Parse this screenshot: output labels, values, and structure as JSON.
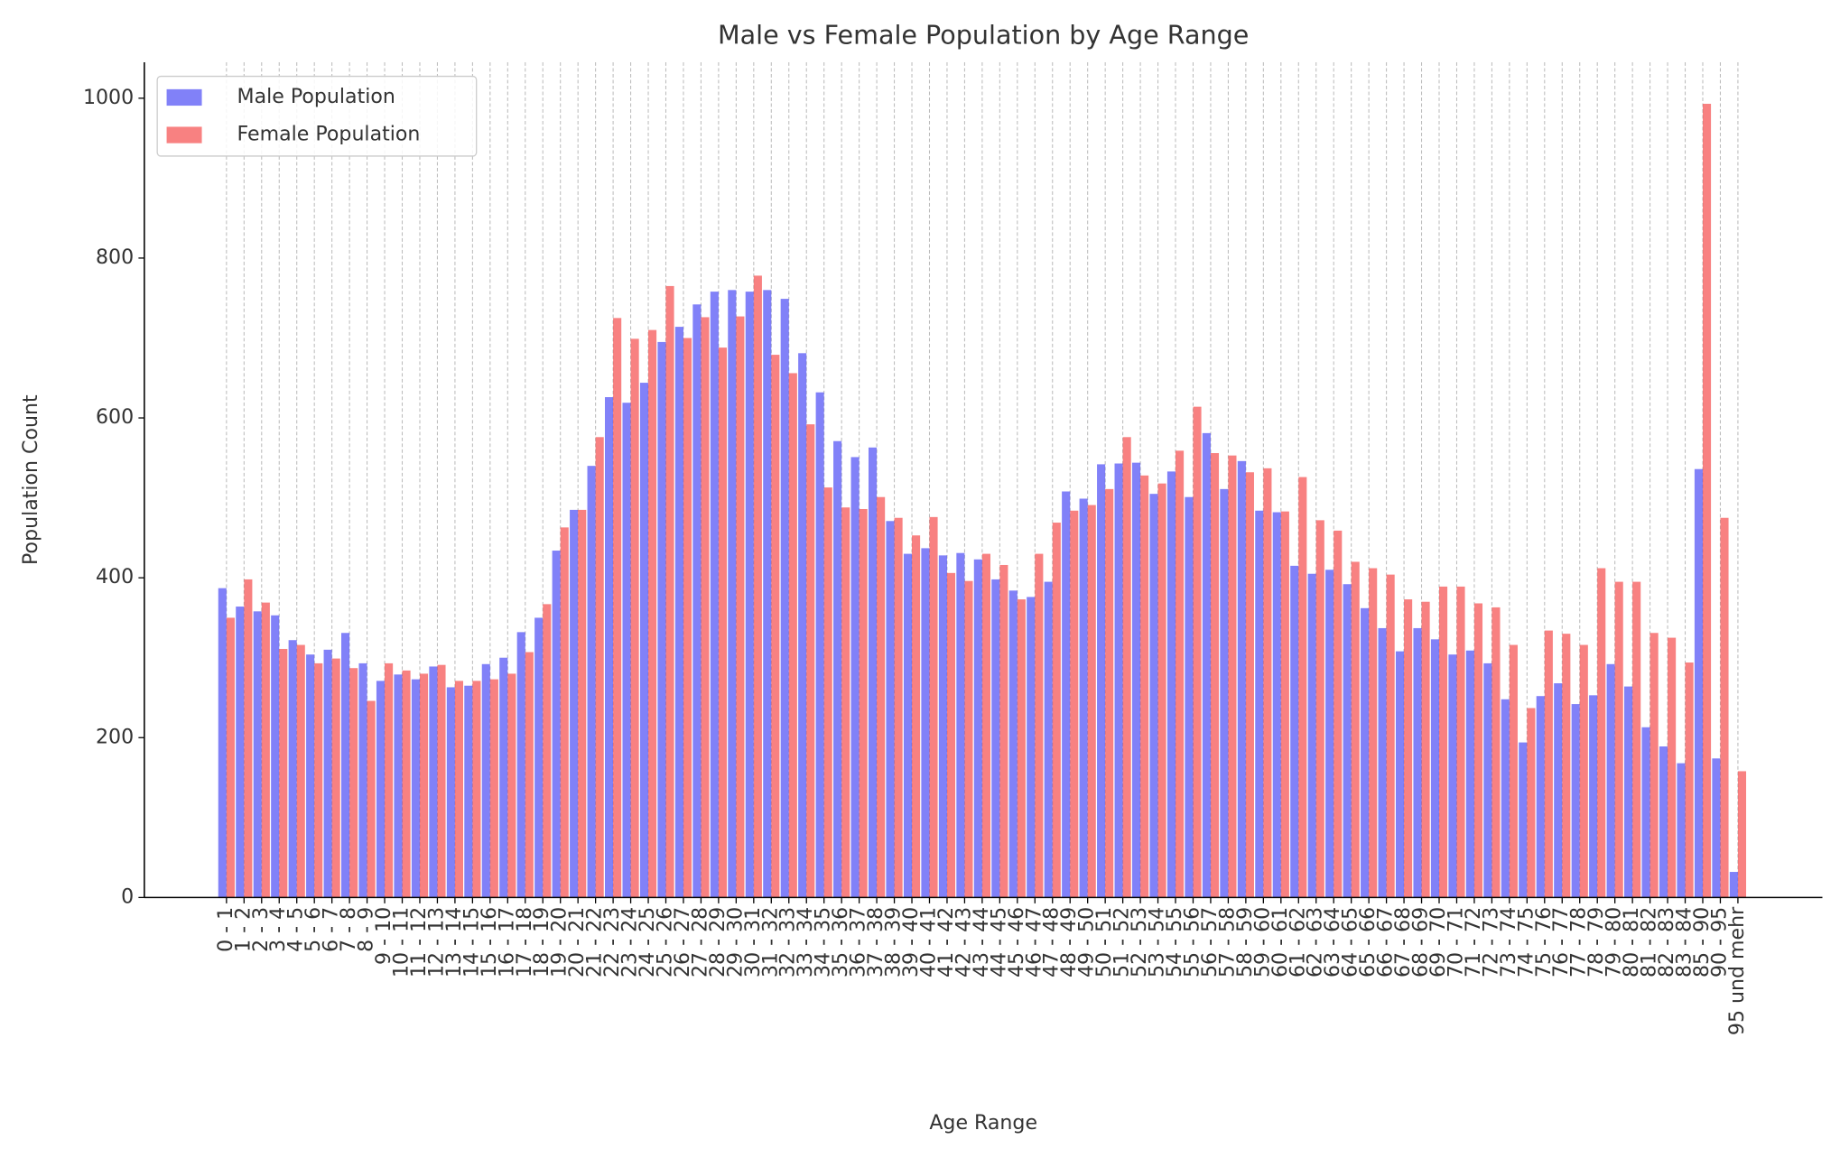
{
  "chart_data": {
    "type": "bar",
    "title": "Male vs Female Population by Age Range",
    "xlabel": "Age Range",
    "ylabel": "Population Count",
    "categories": [
      "0 - 1",
      "1 - 2",
      "2 - 3",
      "3 - 4",
      "4 - 5",
      "5 - 6",
      "6 - 7",
      "7 - 8",
      "8 - 9",
      "9 - 10",
      "10 - 11",
      "11 - 12",
      "12 - 13",
      "13 - 14",
      "14 - 15",
      "15 - 16",
      "16 - 17",
      "17 - 18",
      "18 - 19",
      "19 - 20",
      "20 - 21",
      "21 - 22",
      "22 - 23",
      "23 - 24",
      "24 - 25",
      "25 - 26",
      "26 - 27",
      "27 - 28",
      "28 - 29",
      "29 - 30",
      "30 - 31",
      "31 - 32",
      "32 - 33",
      "33 - 34",
      "34 - 35",
      "35 - 36",
      "36 - 37",
      "37 - 38",
      "38 - 39",
      "39 - 40",
      "40 - 41",
      "41 - 42",
      "42 - 43",
      "43 - 44",
      "44 - 45",
      "45 - 46",
      "46 - 47",
      "47 - 48",
      "48 - 49",
      "49 - 50",
      "50 - 51",
      "51 - 52",
      "52 - 53",
      "53 - 54",
      "54 - 55",
      "55 - 56",
      "56 - 57",
      "57 - 58",
      "58 - 59",
      "59 - 60",
      "60 - 61",
      "61 - 62",
      "62 - 63",
      "63 - 64",
      "64 - 65",
      "65 - 66",
      "66 - 67",
      "67 - 68",
      "68 - 69",
      "69 - 70",
      "70 - 71",
      "71 - 72",
      "72 - 73",
      "73 - 74",
      "74 - 75",
      "75 - 76",
      "76 - 77",
      "77 - 78",
      "78 - 79",
      "79 - 80",
      "80 - 81",
      "81 - 82",
      "82 - 83",
      "83 - 84",
      "85 - 90",
      "90 - 95",
      "95 und mehr"
    ],
    "series": [
      {
        "name": "Male Population",
        "color": "#4b4bf5",
        "values": [
          387,
          364,
          358,
          353,
          322,
          304,
          310,
          331,
          293,
          271,
          279,
          273,
          289,
          263,
          265,
          292,
          300,
          332,
          350,
          434,
          485,
          540,
          626,
          619,
          644,
          695,
          714,
          742,
          758,
          760,
          758,
          760,
          749,
          681,
          632,
          571,
          551,
          563,
          471,
          430,
          437,
          428,
          431,
          423,
          398,
          384,
          376,
          395,
          508,
          499,
          542,
          543,
          544,
          505,
          533,
          501,
          581,
          511,
          546,
          484,
          482,
          415,
          405,
          410,
          392,
          362,
          337,
          308,
          337,
          323,
          304,
          309,
          293,
          248,
          194,
          252,
          268,
          242,
          253,
          292,
          264,
          213,
          189,
          168,
          536,
          174,
          32
        ]
      },
      {
        "name": "Female Population",
        "color": "#f54b4b",
        "values": [
          350,
          398,
          369,
          311,
          316,
          293,
          299,
          287,
          246,
          293,
          284,
          280,
          291,
          271,
          271,
          273,
          280,
          307,
          367,
          463,
          485,
          576,
          725,
          699,
          710,
          765,
          700,
          726,
          688,
          727,
          778,
          679,
          656,
          592,
          513,
          488,
          486,
          501,
          475,
          453,
          476,
          406,
          396,
          430,
          416,
          373,
          430,
          469,
          484,
          491,
          511,
          576,
          528,
          518,
          559,
          614,
          556,
          553,
          532,
          537,
          483,
          526,
          472,
          459,
          420,
          412,
          404,
          373,
          370,
          389,
          389,
          368,
          363,
          316,
          237,
          334,
          330,
          316,
          412,
          395,
          395,
          331,
          325,
          294,
          993,
          475,
          158
        ]
      }
    ],
    "ylim": [
      0,
      1045
    ],
    "yticks": [
      0,
      200,
      400,
      600,
      800,
      1000
    ],
    "grid": "x",
    "legend": "upper left"
  }
}
